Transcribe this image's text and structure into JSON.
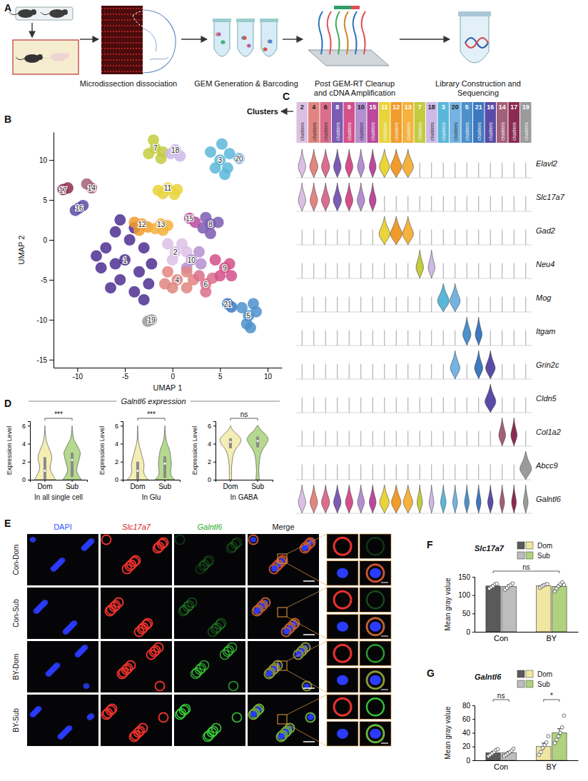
{
  "figure": {
    "panel_labels": [
      "A",
      "B",
      "C",
      "D",
      "E",
      "F",
      "G"
    ],
    "d_title": "Galntl6 expression"
  },
  "workflow": {
    "steps": [
      "Microdissection dissociation",
      "GEM Generation & Barcoding",
      "Post GEM-RT Cleanup and cDNA Amplification",
      "Library Construction and Sequencing"
    ]
  },
  "micrographs": {
    "columns": [
      "DAPI",
      "Slc17a7",
      "Galntl6",
      "Merge"
    ],
    "rows": [
      "Con-Dom",
      "Con-Sub",
      "BY-Dom",
      "BY-Sub"
    ]
  },
  "chart_data": [
    {
      "type": "scatter",
      "x_label": "UMAP 1",
      "y_label": "UMAP 2",
      "xlim": [
        -12.5,
        11.5
      ],
      "ylim": [
        -16,
        13.5
      ],
      "xticks": [
        -10,
        -5,
        0,
        5,
        10
      ],
      "yticks": [
        -15,
        -10,
        -5,
        0,
        5,
        10
      ],
      "series": [
        {
          "name": "1",
          "color": "#4e2f91",
          "x": [
            -5,
            -7,
            -6,
            -4,
            -3,
            -3.5,
            -5.5,
            -7.5,
            -4,
            -2.5,
            -6,
            -4.5,
            -8,
            -3,
            -5.5,
            -6.5,
            -2.2
          ],
          "y": [
            -2.5,
            -1,
            1,
            1.5,
            -1,
            -4,
            -5,
            -3.5,
            -6.5,
            -5.5,
            -3,
            0,
            -2,
            -7.5,
            2.5,
            -6,
            -3
          ]
        },
        {
          "name": "2",
          "color": "#dcc0e4",
          "x": [
            0.3,
            -0.5,
            1,
            0,
            1.5
          ],
          "y": [
            -1.5,
            -0.5,
            -0.5,
            -2.5,
            -1.5
          ]
        },
        {
          "name": "10",
          "color": "#b48fd0",
          "x": [
            2,
            2.8,
            1.5,
            3
          ],
          "y": [
            -2.5,
            -1.5,
            -3.5,
            -3
          ]
        },
        {
          "name": "4",
          "color": "#e28580",
          "x": [
            0.5,
            -0.5,
            1.5,
            0,
            1.5,
            2.2,
            -0.8
          ],
          "y": [
            -5,
            -4,
            -4,
            -6,
            -6,
            -5,
            -5.5
          ]
        },
        {
          "name": "6",
          "color": "#da6e8c",
          "x": [
            3.5,
            2.8,
            4.2,
            3.5
          ],
          "y": [
            -5.5,
            -4.5,
            -4.8,
            -6.5
          ]
        },
        {
          "name": "9",
          "color": "#d4508a",
          "x": [
            5.5,
            4.5,
            6,
            5,
            6.2
          ],
          "y": [
            -3.5,
            -2.5,
            -3,
            -4.5,
            -4.5
          ]
        },
        {
          "name": "8",
          "color": "#7b5cb2",
          "x": [
            4,
            3.2,
            4.8,
            4,
            3.5
          ],
          "y": [
            2,
            1.5,
            2.2,
            0.8,
            2.8
          ]
        },
        {
          "name": "15",
          "color": "#b94a9e",
          "x": [
            1.8,
            2.4
          ],
          "y": [
            2.7,
            2.2
          ]
        },
        {
          "name": "12",
          "color": "#f19b2b",
          "x": [
            -3.2,
            -4,
            -2.6,
            -3.5
          ],
          "y": [
            2,
            2.2,
            1.6,
            1.2
          ]
        },
        {
          "name": "13",
          "color": "#f5b23e",
          "x": [
            -1.2,
            -0.5,
            -1.8,
            -1
          ],
          "y": [
            2,
            1.8,
            1.4,
            1.2
          ]
        },
        {
          "name": "11",
          "color": "#e9d43a",
          "x": [
            -0.5,
            -1.5,
            0.5,
            -1,
            0.2
          ],
          "y": [
            6.5,
            6.2,
            6.3,
            5.8,
            5.7
          ]
        },
        {
          "name": "7",
          "color": "#c3cc3e",
          "x": [
            -1.8,
            -2.5,
            -1,
            -2,
            -1.2
          ],
          "y": [
            11.5,
            10.8,
            11,
            12.5,
            10.2
          ]
        },
        {
          "name": "18",
          "color": "#cdb9e6",
          "x": [
            0.3,
            0.8,
            -0.2
          ],
          "y": [
            11.3,
            10.5,
            10.8
          ]
        },
        {
          "name": "3",
          "color": "#5ab7d9",
          "x": [
            5,
            4,
            6,
            5.2,
            4.5,
            5.8,
            5.5
          ],
          "y": [
            10,
            11,
            10.8,
            12,
            9,
            9,
            8.2
          ]
        },
        {
          "name": "20",
          "color": "#74b3e2",
          "x": [
            7
          ],
          "y": [
            10.2
          ]
        },
        {
          "name": "14",
          "color": "#a3607a",
          "x": [
            -8.5,
            -9
          ],
          "y": [
            6.5,
            7
          ]
        },
        {
          "name": "17",
          "color": "#8c2b52",
          "x": [
            -11.5,
            -11
          ],
          "y": [
            6.3,
            6.5
          ]
        },
        {
          "name": "16",
          "color": "#5a4ca6",
          "x": [
            -9.8,
            -10.2,
            -9.4
          ],
          "y": [
            4,
            3.7,
            4.3
          ]
        },
        {
          "name": "19",
          "color": "#9b9b9b",
          "x": [
            -2.2,
            -2.6
          ],
          "y": [
            -10,
            -10.2
          ]
        },
        {
          "name": "21",
          "color": "#3d78c0",
          "x": [
            5.8,
            6.2
          ],
          "y": [
            -8,
            -8.4
          ]
        },
        {
          "name": "5",
          "color": "#4d90cb",
          "x": [
            8,
            7.3,
            8.5,
            7.8,
            8.8,
            8.2
          ],
          "y": [
            -9.5,
            -8.5,
            -8,
            -10.5,
            -9,
            -11
          ]
        }
      ]
    },
    {
      "type": "violin_grid",
      "title": "Clusters",
      "category_label": "clusters",
      "categories": [
        "2",
        "4",
        "6",
        "8",
        "9",
        "10",
        "15",
        "11",
        "12",
        "13",
        "7",
        "18",
        "3",
        "20",
        "5",
        "21",
        "16",
        "14",
        "17",
        "19"
      ],
      "colors": [
        "#dcc0e4",
        "#e28580",
        "#da6e8c",
        "#7b5cb2",
        "#d4508a",
        "#b48fd0",
        "#b94a9e",
        "#e9d43a",
        "#f19b2b",
        "#f5b23e",
        "#c3cc3e",
        "#cdb9e6",
        "#5ab7d9",
        "#74b3e2",
        "#4d90cb",
        "#3d78c0",
        "#5a4ca6",
        "#a3607a",
        "#8c2b52",
        "#9b9b9b"
      ],
      "genes": [
        "Elavl2",
        "Slc17a7",
        "Gad2",
        "Neu4",
        "Mog",
        "Itgam",
        "Grin2c",
        "Cldn5",
        "Col1a2",
        "Abcc9",
        "Galntl6"
      ],
      "widths": [
        [
          0.55,
          0.6,
          0.6,
          0.55,
          0.55,
          0.5,
          0.5,
          0.75,
          0.8,
          0.8,
          0,
          0,
          0,
          0,
          0,
          0,
          0,
          0,
          0,
          0
        ],
        [
          0.55,
          0.55,
          0.6,
          0.6,
          0.55,
          0.55,
          0.5,
          0,
          0,
          0,
          0,
          0,
          0,
          0,
          0,
          0,
          0,
          0,
          0,
          0
        ],
        [
          0,
          0,
          0,
          0,
          0,
          0,
          0,
          0.8,
          0.85,
          0.8,
          0,
          0,
          0,
          0,
          0,
          0,
          0,
          0,
          0,
          0
        ],
        [
          0,
          0,
          0,
          0,
          0,
          0,
          0,
          0,
          0,
          0,
          0.55,
          0.5,
          0,
          0,
          0,
          0,
          0,
          0,
          0,
          0
        ],
        [
          0,
          0,
          0,
          0,
          0,
          0,
          0,
          0,
          0,
          0,
          0,
          0,
          0.85,
          0.75,
          0,
          0,
          0,
          0,
          0,
          0
        ],
        [
          0,
          0,
          0,
          0,
          0,
          0,
          0,
          0,
          0,
          0,
          0,
          0,
          0,
          0,
          0.6,
          0.5,
          0,
          0,
          0,
          0
        ],
        [
          0,
          0,
          0,
          0,
          0,
          0,
          0,
          0,
          0,
          0,
          0,
          0,
          0,
          0.7,
          0,
          0.6,
          0.7,
          0,
          0,
          0
        ],
        [
          0,
          0,
          0,
          0,
          0,
          0,
          0,
          0,
          0,
          0,
          0,
          0,
          0,
          0,
          0,
          0,
          0.8,
          0,
          0,
          0
        ],
        [
          0,
          0,
          0,
          0,
          0,
          0,
          0,
          0,
          0,
          0,
          0,
          0,
          0,
          0,
          0,
          0,
          0,
          0.5,
          0.45,
          0
        ],
        [
          0,
          0,
          0,
          0,
          0,
          0,
          0,
          0,
          0,
          0,
          0,
          0,
          0,
          0,
          0,
          0,
          0,
          0,
          0,
          0.85
        ],
        [
          0.55,
          0.55,
          0.6,
          0.55,
          0.55,
          0.5,
          0.5,
          0.7,
          0.7,
          0.7,
          0.4,
          0.35,
          0.4,
          0.35,
          0.35,
          0.35,
          0.4,
          0.35,
          0.35,
          0.35
        ]
      ]
    },
    {
      "type": "violin",
      "title": "In all single cell",
      "categories": [
        "Dom",
        "Sub"
      ],
      "colors": [
        "#f4eeb4",
        "#b5d98e"
      ],
      "y_label": "Expression Level",
      "ylim": [
        0,
        6.5
      ],
      "yticks": [
        0,
        2,
        4,
        6
      ],
      "density_y": [
        0,
        0.5,
        1,
        1.5,
        2,
        2.5,
        3,
        3.5,
        4,
        4.5,
        5,
        5.5,
        6
      ],
      "violins": [
        {
          "density": [
            0.9,
            0.7,
            0.5,
            0.45,
            0.55,
            0.6,
            0.5,
            0.35,
            0.2,
            0.1,
            0.05,
            0.02,
            0
          ],
          "q1": 0,
          "median": 1,
          "q3": 2.5
        },
        {
          "density": [
            0.8,
            0.55,
            0.4,
            0.45,
            0.55,
            0.65,
            0.7,
            0.55,
            0.35,
            0.15,
            0.07,
            0.03,
            0
          ],
          "q1": 0.3,
          "median": 2.2,
          "q3": 3
        }
      ],
      "annotations": [
        {
          "text": "***",
          "categories": [
            "Dom",
            "Sub"
          ]
        }
      ]
    },
    {
      "type": "violin",
      "title": "In Glu",
      "categories": [
        "Dom",
        "Sub"
      ],
      "colors": [
        "#f4eeb4",
        "#b5d98e"
      ],
      "y_label": "Expression Level",
      "ylim": [
        0,
        6.5
      ],
      "yticks": [
        0,
        2,
        4,
        6
      ],
      "density_y": [
        0,
        0.5,
        1,
        1.5,
        2,
        2.5,
        3,
        3.5,
        4,
        4.5,
        5,
        5.5,
        6
      ],
      "violins": [
        {
          "density": [
            0.9,
            0.6,
            0.5,
            0.55,
            0.5,
            0.4,
            0.3,
            0.2,
            0.1,
            0.05,
            0.02,
            0.01,
            0
          ],
          "q1": 0,
          "median": 1,
          "q3": 2
        },
        {
          "density": [
            0.85,
            0.55,
            0.5,
            0.55,
            0.55,
            0.5,
            0.45,
            0.35,
            0.2,
            0.1,
            0.05,
            0.02,
            0
          ],
          "q1": 0.2,
          "median": 1.8,
          "q3": 2.6
        }
      ],
      "annotations": [
        {
          "text": "***",
          "categories": [
            "Dom",
            "Sub"
          ]
        }
      ]
    },
    {
      "type": "violin",
      "title": "In GABA",
      "categories": [
        "Dom",
        "Sub"
      ],
      "colors": [
        "#f4eeb4",
        "#b5d98e"
      ],
      "y_label": "Expression Level",
      "ylim": [
        0,
        6.5
      ],
      "yticks": [
        0,
        2,
        4,
        6
      ],
      "density_y": [
        0,
        0.5,
        1,
        1.5,
        2,
        2.5,
        3,
        3.5,
        4,
        4.5,
        5,
        5.5,
        6
      ],
      "violins": [
        {
          "density": [
            0.1,
            0.1,
            0.1,
            0.1,
            0.15,
            0.2,
            0.3,
            0.5,
            0.8,
            0.9,
            0.6,
            0.2,
            0
          ],
          "q1": 3.5,
          "median": 4.2,
          "q3": 4.6
        },
        {
          "density": [
            0.15,
            0.12,
            0.1,
            0.12,
            0.15,
            0.2,
            0.3,
            0.5,
            0.75,
            0.9,
            0.7,
            0.3,
            0.05
          ],
          "q1": 3.6,
          "median": 4.3,
          "q3": 4.8
        }
      ],
      "annotations": [
        {
          "text": "ns",
          "categories": [
            "Dom",
            "Sub"
          ]
        }
      ]
    },
    {
      "type": "bar",
      "title": "Slc17a7",
      "categories": [
        "Con",
        "BY"
      ],
      "y_label": "Mean gray value",
      "ylim": [
        0,
        150
      ],
      "yticks": [
        0,
        50,
        100,
        150
      ],
      "legend": "top-left",
      "series": [
        {
          "name": "Dom",
          "colors": [
            "#5a5a5a",
            "#f0e6a2"
          ],
          "values": [
            125,
            126
          ],
          "errors": [
            3,
            3
          ],
          "points": [
            [
              118,
              122,
              125,
              130,
              131
            ],
            [
              120,
              124,
              127,
              129,
              130
            ]
          ]
        },
        {
          "name": "Sub",
          "colors": [
            "#bdbdbd",
            "#b0d27e"
          ],
          "values": [
            124,
            124
          ],
          "errors": [
            4,
            5
          ],
          "points": [
            [
              115,
              120,
              125,
              128,
              132
            ],
            [
              110,
              118,
              124,
              130,
              135,
              128
            ]
          ]
        }
      ],
      "annotations": [
        {
          "text": "ns",
          "categories": [
            "Con",
            "BY"
          ]
        }
      ]
    },
    {
      "type": "bar",
      "title": "Galntl6",
      "categories": [
        "Con",
        "BY"
      ],
      "y_label": "Mean gray value",
      "ylim": [
        0,
        80
      ],
      "yticks": [
        0,
        20,
        40,
        60,
        80
      ],
      "legend": "top-left",
      "series": [
        {
          "name": "Dom",
          "colors": [
            "#5a5a5a",
            "#f0e6a2"
          ],
          "values": [
            11,
            20
          ],
          "errors": [
            2,
            5
          ],
          "points": [
            [
              6,
              8,
              10,
              12,
              15,
              16
            ],
            [
              8,
              12,
              18,
              22,
              26,
              35
            ]
          ]
        },
        {
          "name": "Sub",
          "colors": [
            "#bdbdbd",
            "#b0d27e"
          ],
          "values": [
            11,
            40
          ],
          "errors": [
            2,
            6
          ],
          "points": [
            [
              6,
              8,
              10,
              12,
              14,
              17
            ],
            [
              25,
              30,
              35,
              40,
              48,
              65
            ]
          ]
        }
      ],
      "annotations": [
        {
          "text": "ns",
          "categories": [
            "Con"
          ]
        },
        {
          "text": "*",
          "categories": [
            "BY"
          ]
        }
      ]
    }
  ]
}
